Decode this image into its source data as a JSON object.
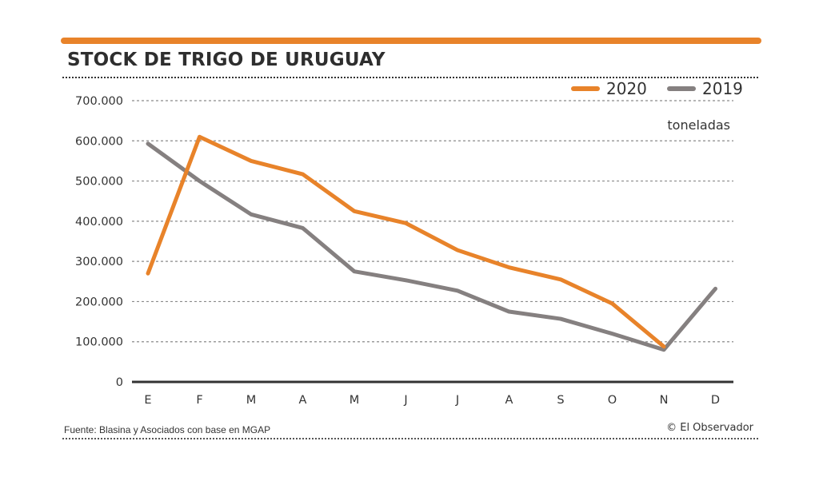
{
  "header": {
    "title": "STOCK DE TRIGO DE URUGUAY"
  },
  "footer": {
    "source": "Fuente: Blasina y Asociados con base en MGAP",
    "credit": "© El Observador"
  },
  "chart_data": {
    "type": "line",
    "title": "STOCK DE TRIGO DE URUGUAY",
    "xlabel": "",
    "ylabel": "toneladas",
    "unit_label": "toneladas",
    "categories": [
      "E",
      "F",
      "M",
      "A",
      "M",
      "J",
      "J",
      "A",
      "S",
      "O",
      "N",
      "D"
    ],
    "ylim": [
      0,
      700000
    ],
    "yticks": [
      0,
      100000,
      200000,
      300000,
      400000,
      500000,
      600000,
      700000
    ],
    "ytick_labels": [
      "0",
      "100.000",
      "200.000",
      "300.000",
      "400.000",
      "500.000",
      "600.000",
      "700.000"
    ],
    "grid": true,
    "legend_position": "top-right",
    "series": [
      {
        "name": "2020",
        "color": "#e8832a",
        "values": [
          270000,
          610000,
          550000,
          517000,
          425000,
          395000,
          328000,
          285000,
          255000,
          195000,
          88000,
          null
        ]
      },
      {
        "name": "2019",
        "color": "#858080",
        "values": [
          593000,
          500000,
          417000,
          383000,
          275000,
          253000,
          227000,
          175000,
          157000,
          120000,
          80000,
          232000
        ]
      }
    ]
  }
}
